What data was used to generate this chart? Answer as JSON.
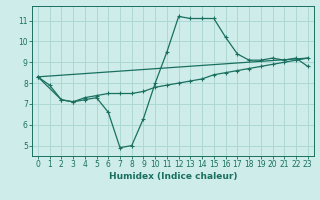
{
  "xlabel": "Humidex (Indice chaleur)",
  "bg_color": "#ceecea",
  "grid_color": "#aed8d4",
  "line_color": "#1a7060",
  "xlim": [
    -0.5,
    23.5
  ],
  "ylim": [
    4.5,
    11.7
  ],
  "xticks": [
    0,
    1,
    2,
    3,
    4,
    5,
    6,
    7,
    8,
    9,
    10,
    11,
    12,
    13,
    14,
    15,
    16,
    17,
    18,
    19,
    20,
    21,
    22,
    23
  ],
  "yticks": [
    5,
    6,
    7,
    8,
    9,
    10,
    11
  ],
  "line1_x": [
    0,
    1,
    2,
    3,
    4,
    5,
    6,
    7,
    8,
    9,
    10,
    11,
    12,
    13,
    14,
    15,
    16,
    17,
    18,
    19,
    20,
    21,
    22,
    23
  ],
  "line1_y": [
    8.3,
    7.9,
    7.2,
    7.1,
    7.2,
    7.3,
    6.6,
    4.9,
    5.0,
    6.3,
    8.0,
    9.5,
    11.2,
    11.1,
    11.1,
    11.1,
    10.2,
    9.4,
    9.1,
    9.1,
    9.2,
    9.1,
    9.2,
    8.8
  ],
  "line2_x": [
    0,
    2,
    3,
    4,
    5,
    6,
    7,
    8,
    9,
    10,
    11,
    12,
    13,
    14,
    15,
    16,
    17,
    18,
    19,
    20,
    21,
    22,
    23
  ],
  "line2_y": [
    8.3,
    7.2,
    7.1,
    7.3,
    7.4,
    7.5,
    7.5,
    7.5,
    7.6,
    7.8,
    7.9,
    8.0,
    8.1,
    8.2,
    8.4,
    8.5,
    8.6,
    8.7,
    8.8,
    8.9,
    9.0,
    9.1,
    9.2
  ],
  "line3_x": [
    0,
    23
  ],
  "line3_y": [
    8.3,
    9.2
  ]
}
